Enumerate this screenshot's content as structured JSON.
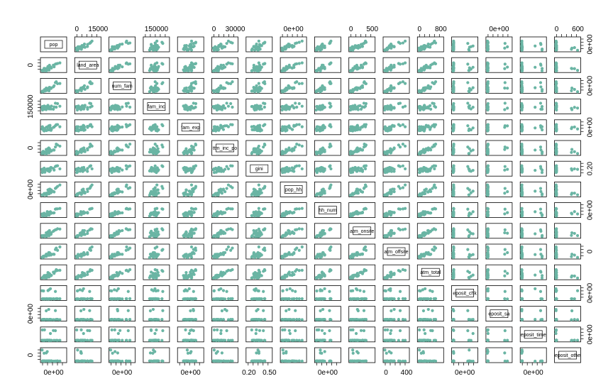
{
  "chart_data": {
    "type": "scatter",
    "layout": "scatterplot-matrix",
    "point_color": "#6ab5a4",
    "variables": [
      "pop",
      "land_area",
      "num_fam",
      "fam_inc",
      "fam_exp",
      "ttm_inc_po",
      "gini",
      "pop_hh",
      "hh_num",
      "atm_onsite",
      "atm_offsite",
      "atm_total",
      "eposit_chk",
      "eposit_sa",
      "eposit_time",
      "eposit_othe"
    ],
    "top_tick_labels": [
      {
        "col": 1,
        "labels": [
          "0",
          "15000"
        ]
      },
      {
        "col": 3,
        "labels": [
          "150000"
        ]
      },
      {
        "col": 5,
        "labels": [
          "0",
          "30000"
        ]
      },
      {
        "col": 7,
        "labels": [
          "0e+00"
        ]
      },
      {
        "col": 9,
        "labels": [
          "0",
          "500"
        ]
      },
      {
        "col": 11,
        "labels": [
          "0",
          "800"
        ]
      },
      {
        "col": 13,
        "labels": [
          "0e+00"
        ]
      },
      {
        "col": 15,
        "labels": [
          "0",
          "600"
        ]
      }
    ],
    "bottom_tick_labels": [
      {
        "col": 0,
        "labels": [
          "0e+00"
        ]
      },
      {
        "col": 2,
        "labels": [
          "0e+00"
        ]
      },
      {
        "col": 4,
        "labels": [
          "0e+00"
        ]
      },
      {
        "col": 6,
        "labels": [
          "0.20",
          "0.50"
        ]
      },
      {
        "col": 8,
        "labels": [
          "0e+00"
        ]
      },
      {
        "col": 10,
        "labels": [
          "0",
          "400"
        ]
      },
      {
        "col": 12,
        "labels": [
          "0e+00"
        ]
      },
      {
        "col": 14,
        "labels": [
          "0e+00"
        ]
      }
    ],
    "left_tick_labels": [
      {
        "row": 1,
        "labels": [
          "0"
        ]
      },
      {
        "row": 3,
        "labels": [
          "150000"
        ]
      },
      {
        "row": 5,
        "labels": [
          "0"
        ]
      },
      {
        "row": 7,
        "labels": [
          "0e+00"
        ]
      },
      {
        "row": 13,
        "labels": [
          "0e+00"
        ]
      },
      {
        "row": 15,
        "labels": [
          "0"
        ]
      }
    ],
    "right_tick_labels": [
      {
        "row": 0,
        "labels": [
          "0e+00"
        ]
      },
      {
        "row": 2,
        "labels": [
          "0e+00"
        ]
      },
      {
        "row": 4,
        "labels": [
          "0e+00"
        ]
      },
      {
        "row": 6,
        "labels": [
          "0.20"
        ]
      },
      {
        "row": 8,
        "labels": [
          "0e+00"
        ]
      },
      {
        "row": 10,
        "labels": [
          "0"
        ]
      },
      {
        "row": 12,
        "labels": [
          "0e+00"
        ]
      },
      {
        "row": 14,
        "labels": [
          "0e+00"
        ]
      }
    ],
    "series_shape": {
      "pop": "skewed",
      "land_area": "skewed",
      "num_fam": "skewed",
      "fam_inc": "spread",
      "fam_exp": "spread",
      "ttm_inc_po": "skewed",
      "gini": "spread",
      "pop_hh": "skewed",
      "hh_num": "skewed",
      "atm_onsite": "skewed",
      "atm_offsite": "skewed",
      "atm_total": "skewed",
      "eposit_chk": "extreme",
      "eposit_sa": "extreme",
      "eposit_time": "extreme",
      "eposit_othe": "extreme"
    }
  }
}
